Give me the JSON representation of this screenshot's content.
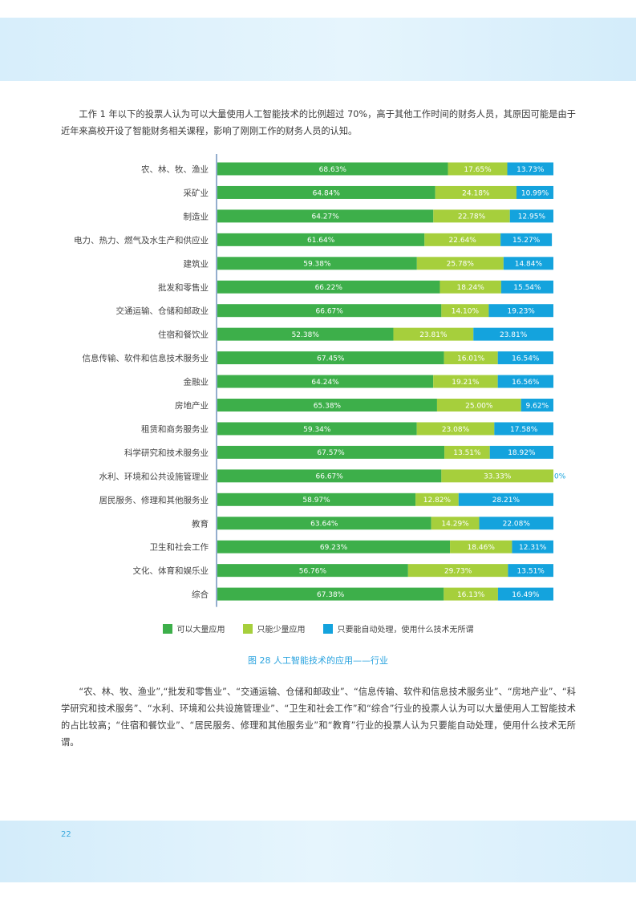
{
  "page": {
    "paragraph_top": "工作 1 年以下的投票人认为可以大量使用人工智能技术的比例超过 70%，高于其他工作时间的财务人员，其原因可能是由于近年来高校开设了智能财务相关课程，影响了刚刚工作的财务人员的认知。",
    "paragraph_bottom": "“农、林、牧、渔业”,“批发和零售业”、“交通运输、仓储和邮政业”、“信息传输、软件和信息技术服务业”、“房地产业”、“科学研究和技术服务”、“水利、环境和公共设施管理业”、“卫生和社会工作”和“综合”行业的投票人认为可以大量使用人工智能技术的占比较高；“住宿和餐饮业”、“居民服务、修理和其他服务业”和“教育”行业的投票人认为只要能自动处理，使用什么技术无所谓。",
    "caption": "图 28  人工智能技术的应用——行业",
    "page_number": "22"
  },
  "chart_data": {
    "type": "bar",
    "orientation": "horizontal",
    "stacked": true,
    "percent_stacked": true,
    "title": "",
    "xlabel": "",
    "ylabel": "",
    "xlim": [
      0,
      100
    ],
    "grid": false,
    "legend_position": "bottom",
    "categories": [
      "农、林、牧、渔业",
      "采矿业",
      "制造业",
      "电力、热力、燃气及水生产和供应业",
      "建筑业",
      "批发和零售业",
      "交通运输、仓储和邮政业",
      "住宿和餐饮业",
      "信息传输、软件和信息技术服务业",
      "金融业",
      "房地产业",
      "租赁和商务服务业",
      "科学研究和技术服务业",
      "水利、环境和公共设施管理业",
      "居民服务、修理和其他服务业",
      "教育",
      "卫生和社会工作",
      "文化、体育和娱乐业",
      "综合"
    ],
    "series": [
      {
        "name": "可以大量应用",
        "color": "#3daf4a",
        "values": [
          68.63,
          64.84,
          64.27,
          61.64,
          59.38,
          66.22,
          66.67,
          52.38,
          67.45,
          64.24,
          65.38,
          59.34,
          67.57,
          66.67,
          58.97,
          63.64,
          69.23,
          56.76,
          67.38
        ],
        "labels": [
          "68.63%",
          "64.84%",
          "64.27%",
          "61.64%",
          "59.38%",
          "66.22%",
          "66.67%",
          "52.38%",
          "67.45%",
          "64.24%",
          "65.38%",
          "59.34%",
          "67.57%",
          "66.67%",
          "58.97%",
          "63.64%",
          "69.23%",
          "56.76%",
          "67.38%"
        ]
      },
      {
        "name": "只能少量应用",
        "color": "#a6cf3c",
        "values": [
          17.65,
          24.18,
          22.78,
          22.64,
          25.78,
          18.24,
          14.1,
          23.81,
          16.01,
          19.21,
          25.0,
          23.08,
          13.51,
          33.33,
          12.82,
          14.29,
          18.46,
          29.73,
          16.13
        ],
        "labels": [
          "17.65%",
          "24.18%",
          "22.78%",
          "22.64%",
          "25.78%",
          "18.24%",
          "14.10%",
          "23.81%",
          "16.01%",
          "19.21%",
          "25.00%",
          "23.08%",
          "13.51%",
          "33.33%",
          "12.82%",
          "14.29%",
          "18.46%",
          "29.73%",
          "16.13%"
        ]
      },
      {
        "name": "只要能自动处理，使用什么技术无所谓",
        "color": "#14a3dd",
        "values": [
          13.73,
          10.99,
          12.95,
          15.27,
          14.84,
          15.54,
          19.23,
          23.81,
          16.54,
          16.56,
          9.62,
          17.58,
          18.92,
          0,
          28.21,
          22.08,
          12.31,
          13.51,
          16.49
        ],
        "labels": [
          "13.73%",
          "10.99%",
          "12.95%",
          "15.27%",
          "14.84%",
          "15.54%",
          "19.23%",
          "23.81%",
          "16.54%",
          "16.56%",
          "9.62%",
          "17.58%",
          "18.92%",
          "0%",
          "28.21%",
          "22.08%",
          "12.31%",
          "13.51%",
          "16.49%"
        ]
      }
    ]
  }
}
